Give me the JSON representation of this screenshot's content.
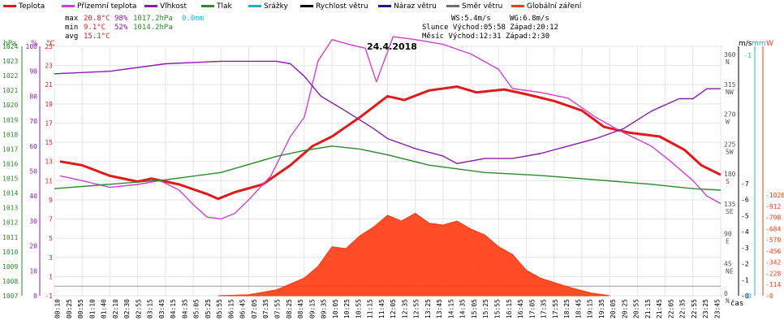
{
  "legend": [
    {
      "label": "Teplota",
      "color": "#e01a1a"
    },
    {
      "label": "Přízemní teplota",
      "color": "#d040d0"
    },
    {
      "label": "Vlhkost",
      "color": "#8a1ab0"
    },
    {
      "label": "Tlak",
      "color": "#2a8a2a"
    },
    {
      "label": "Srážky",
      "color": "#20b0d0"
    },
    {
      "label": "Rychlost větru",
      "color": "#000000"
    },
    {
      "label": "Náraz větru",
      "color": "#1a1a90"
    },
    {
      "label": "Směr větru",
      "color": "#707070"
    },
    {
      "label": "Globální záření",
      "color": "#ff3a10"
    }
  ],
  "stats": {
    "max_label": "max",
    "max_temp": "20.8°C",
    "max_hum": "98%",
    "max_press": "1017.2hPa",
    "max_rain": "0.0mm",
    "min_label": "min",
    "min_temp": "9.1°C",
    "min_hum": "52%",
    "min_press": "1014.2hPa",
    "avg_label": "avg",
    "avg_temp": "15.1°C"
  },
  "info": {
    "ws": "WS:5.4m/s",
    "wg": "WG:6.8m/s",
    "sun": "Slunce Východ:05:58  Západ:20:12",
    "moon": "Měsíc  Východ:12:31  Západ:2:30"
  },
  "chart_data": {
    "type": "line",
    "title": "24.4.2018",
    "xlabel": "čas",
    "axes_units": {
      "pressure": "hPa",
      "humidity": "%",
      "temperature": "°C",
      "direction": "m/s",
      "wind": "m/s",
      "rain": "mm",
      "radiation": "W"
    },
    "pressure_ticks": [
      1007,
      1008,
      1009,
      1010,
      1011,
      1012,
      1013,
      1014,
      1015,
      1016,
      1017,
      1018,
      1019,
      1020,
      1021,
      1022,
      1023,
      1024
    ],
    "humidity_ticks": [
      0,
      10,
      20,
      30,
      40,
      50,
      60,
      70,
      80,
      90,
      100
    ],
    "temp_ticks": [
      -1,
      1,
      3,
      5,
      7,
      9,
      11,
      13,
      15,
      17,
      19,
      21,
      23,
      25
    ],
    "dir_ticks": [
      {
        "deg": 0,
        "t": "0",
        "n": "N"
      },
      {
        "deg": 45,
        "t": "45",
        "n": "NE"
      },
      {
        "deg": 90,
        "t": "90",
        "n": "E"
      },
      {
        "deg": 135,
        "t": "135",
        "n": "SE"
      },
      {
        "deg": 180,
        "t": "180",
        "n": "S"
      },
      {
        "deg": 225,
        "t": "225",
        "n": "SW"
      },
      {
        "deg": 270,
        "t": "270",
        "n": "W"
      },
      {
        "deg": 315,
        "t": "315",
        "n": "NW"
      },
      {
        "deg": 360,
        "t": "360",
        "n": "N"
      }
    ],
    "wind_ticks": [
      0,
      1,
      2,
      3,
      4,
      5,
      6,
      7
    ],
    "rain_ticks": [
      0,
      1
    ],
    "rad_ticks": [
      0,
      114,
      228,
      342,
      456,
      570,
      684,
      798,
      912,
      1026
    ],
    "x_ticks": [
      "00:10",
      "00:25",
      "00:55",
      "01:10",
      "01:40",
      "02:10",
      "02:30",
      "02:55",
      "03:15",
      "03:45",
      "04:15",
      "04:35",
      "05:05",
      "05:25",
      "05:55",
      "06:15",
      "06:45",
      "07:05",
      "07:35",
      "07:55",
      "08:25",
      "08:45",
      "09:15",
      "09:35",
      "10:05",
      "10:25",
      "10:55",
      "11:15",
      "11:45",
      "12:05",
      "12:35",
      "12:55",
      "13:25",
      "13:45",
      "14:15",
      "14:35",
      "15:05",
      "15:25",
      "15:55",
      "16:15",
      "16:45",
      "17:05",
      "17:35",
      "17:55",
      "18:25",
      "18:45",
      "19:15",
      "19:35",
      "20:05",
      "20:25",
      "20:55",
      "21:15",
      "21:45",
      "22:05",
      "22:35",
      "22:55",
      "23:25",
      "23:45"
    ],
    "series": [
      {
        "name": "Teplota",
        "axis": "temperature",
        "color": "#e01a1a",
        "points": [
          [
            0.2,
            13
          ],
          [
            1,
            12.6
          ],
          [
            2,
            11.5
          ],
          [
            3,
            10.9
          ],
          [
            3.5,
            11.2
          ],
          [
            4.5,
            10.6
          ],
          [
            5,
            10.1
          ],
          [
            5.5,
            9.6
          ],
          [
            5.9,
            9.1
          ],
          [
            6.5,
            9.8
          ],
          [
            7.5,
            10.6
          ],
          [
            8.5,
            12.6
          ],
          [
            9.3,
            14.6
          ],
          [
            10,
            15.6
          ],
          [
            10.5,
            16.6
          ],
          [
            11,
            17.6
          ],
          [
            11.5,
            18.7
          ],
          [
            12,
            19.8
          ],
          [
            12.6,
            19.4
          ],
          [
            13.5,
            20.4
          ],
          [
            14.5,
            20.8
          ],
          [
            15.2,
            20.2
          ],
          [
            16.2,
            20.5
          ],
          [
            17,
            20.0
          ],
          [
            18,
            19.3
          ],
          [
            19,
            18.3
          ],
          [
            19.8,
            16.6
          ],
          [
            20.7,
            16.0
          ],
          [
            21.8,
            15.6
          ],
          [
            22.7,
            14.2
          ],
          [
            23.3,
            12.6
          ],
          [
            24,
            11.6
          ]
        ]
      },
      {
        "name": "Přízemní teplota",
        "axis": "temperature",
        "color": "#d040d0",
        "points": [
          [
            0.2,
            11.5
          ],
          [
            1,
            11.0
          ],
          [
            2,
            10.3
          ],
          [
            3,
            10.6
          ],
          [
            3.8,
            11.0
          ],
          [
            4.5,
            10.0
          ],
          [
            5,
            8.5
          ],
          [
            5.5,
            7.2
          ],
          [
            6,
            7.0
          ],
          [
            6.5,
            7.6
          ],
          [
            7,
            9.0
          ],
          [
            7.8,
            11.5
          ],
          [
            8.5,
            15.6
          ],
          [
            9,
            17.6
          ],
          [
            9.5,
            23.5
          ],
          [
            10,
            25.7
          ],
          [
            10.6,
            25.2
          ],
          [
            11.2,
            24.8
          ],
          [
            11.6,
            21.3
          ],
          [
            12.2,
            26.0
          ],
          [
            13,
            25.7
          ],
          [
            14,
            25.2
          ],
          [
            15,
            24.2
          ],
          [
            16,
            22.6
          ],
          [
            16.5,
            20.6
          ],
          [
            17.5,
            20.2
          ],
          [
            18.5,
            19.6
          ],
          [
            19.5,
            17.6
          ],
          [
            20.5,
            16.0
          ],
          [
            21.5,
            14.6
          ],
          [
            22.2,
            13.0
          ],
          [
            23,
            11.0
          ],
          [
            23.5,
            9.4
          ],
          [
            24,
            8.6
          ]
        ]
      },
      {
        "name": "Vlhkost",
        "axis": "humidity",
        "color": "#8a1ab0",
        "points": [
          [
            0,
            89
          ],
          [
            2,
            90
          ],
          [
            4,
            93
          ],
          [
            6,
            94
          ],
          [
            8,
            94
          ],
          [
            8.5,
            93
          ],
          [
            9,
            88
          ],
          [
            9.6,
            80
          ],
          [
            10.5,
            74
          ],
          [
            11.5,
            67
          ],
          [
            12,
            63
          ],
          [
            13,
            59
          ],
          [
            14,
            56
          ],
          [
            14.5,
            53
          ],
          [
            15.5,
            55
          ],
          [
            16.5,
            55
          ],
          [
            17.5,
            57
          ],
          [
            18.5,
            60
          ],
          [
            19.5,
            63
          ],
          [
            20.5,
            67
          ],
          [
            21.5,
            74
          ],
          [
            22.5,
            79
          ],
          [
            23,
            79
          ],
          [
            23.5,
            83
          ],
          [
            24,
            83
          ]
        ]
      },
      {
        "name": "Tlak",
        "axis": "pressure",
        "color": "#2a8a2a",
        "points": [
          [
            0,
            1014.3
          ],
          [
            2,
            1014.6
          ],
          [
            4,
            1014.9
          ],
          [
            6,
            1015.4
          ],
          [
            8,
            1016.5
          ],
          [
            9,
            1016.9
          ],
          [
            10,
            1017.2
          ],
          [
            11,
            1017.0
          ],
          [
            12,
            1016.6
          ],
          [
            13.5,
            1015.9
          ],
          [
            15.5,
            1015.4
          ],
          [
            17.5,
            1015.2
          ],
          [
            19.5,
            1014.9
          ],
          [
            21.5,
            1014.6
          ],
          [
            23,
            1014.3
          ],
          [
            24,
            1014.2
          ]
        ]
      },
      {
        "name": "Globální záření",
        "axis": "radiation",
        "color": "#ff3a10",
        "points": [
          [
            5.9,
            0
          ],
          [
            7,
            10
          ],
          [
            8,
            60
          ],
          [
            9,
            180
          ],
          [
            9.5,
            300
          ],
          [
            10,
            500
          ],
          [
            10.5,
            480
          ],
          [
            11,
            610
          ],
          [
            11.5,
            700
          ],
          [
            12,
            820
          ],
          [
            12.5,
            760
          ],
          [
            13,
            840
          ],
          [
            13.5,
            740
          ],
          [
            14,
            720
          ],
          [
            14.5,
            760
          ],
          [
            15,
            680
          ],
          [
            15.5,
            620
          ],
          [
            16,
            500
          ],
          [
            16.5,
            420
          ],
          [
            17,
            260
          ],
          [
            17.5,
            180
          ],
          [
            18.5,
            90
          ],
          [
            19.3,
            30
          ],
          [
            20,
            0
          ]
        ]
      }
    ]
  }
}
